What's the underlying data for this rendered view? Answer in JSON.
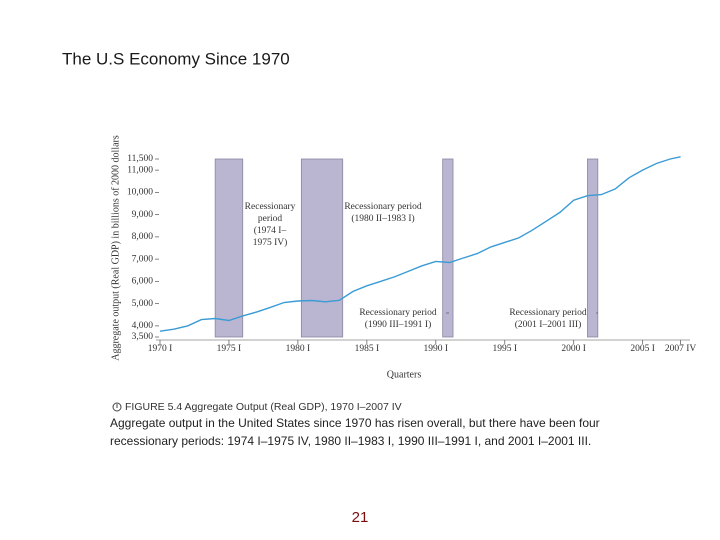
{
  "slide_title": "The U.S Economy Since 1970",
  "chart_data": {
    "type": "line",
    "y_label": "Aggregate output (Real GDP) in billions of 2000 dollars",
    "x_label": "Quarters",
    "x": [
      1970,
      1971,
      1972,
      1973,
      1974,
      1975,
      1976,
      1977,
      1978,
      1979,
      1980,
      1981,
      1982,
      1983,
      1984,
      1985,
      1986,
      1987,
      1988,
      1989,
      1990,
      1991,
      1992,
      1993,
      1994,
      1995,
      1996,
      1997,
      1998,
      1999,
      2000,
      2001,
      2002,
      2003,
      2004,
      2005,
      2006,
      2007,
      2007.75
    ],
    "series": [
      {
        "name": "Real GDP",
        "color": "#3a9bd5",
        "values": [
          3760,
          3850,
          4000,
          4280,
          4330,
          4240,
          4450,
          4620,
          4830,
          5050,
          5120,
          5140,
          5080,
          5150,
          5550,
          5800,
          6000,
          6200,
          6450,
          6700,
          6900,
          6850,
          7050,
          7250,
          7550,
          7750,
          7950,
          8300,
          8700,
          9100,
          9650,
          9850,
          9900,
          10150,
          10650,
          11000,
          11300,
          11500,
          11600
        ]
      }
    ],
    "xlim": [
      1970,
      2008
    ],
    "xticks": [
      {
        "value": 1970,
        "label": "1970 I"
      },
      {
        "value": 1975,
        "label": "1975 I"
      },
      {
        "value": 1980,
        "label": "1980 I"
      },
      {
        "value": 1985,
        "label": "1985 I"
      },
      {
        "value": 1990,
        "label": "1990 I"
      },
      {
        "value": 1995,
        "label": "1995 I"
      },
      {
        "value": 2000,
        "label": "2000 I"
      },
      {
        "value": 2005,
        "label": "2005 I"
      },
      {
        "value": 2007.75,
        "label": "2007 IV"
      }
    ],
    "ylim": [
      3500,
      11500
    ],
    "yticks": [
      {
        "value": 3500,
        "label": "3,500"
      },
      {
        "value": 4000,
        "label": "4,000"
      },
      {
        "value": 5000,
        "label": "5,000"
      },
      {
        "value": 6000,
        "label": "6,000"
      },
      {
        "value": 7000,
        "label": "7,000"
      },
      {
        "value": 8000,
        "label": "8,000"
      },
      {
        "value": 9000,
        "label": "9,000"
      },
      {
        "value": 10000,
        "label": "10,000"
      },
      {
        "value": 11000,
        "label": "11,000"
      },
      {
        "value": 11500,
        "label": "11,500"
      }
    ],
    "band_color": "#bab6d2",
    "recessions": [
      {
        "start": 1974,
        "end": 1976
      },
      {
        "start": 1980.25,
        "end": 1983.25
      },
      {
        "start": 1990.5,
        "end": 1991.25
      },
      {
        "start": 2001,
        "end": 2001.75
      }
    ],
    "annotations": [
      {
        "lines": [
          "Recessionary",
          "period",
          "(1974 I–",
          "1975 IV)"
        ]
      },
      {
        "lines": [
          "Recessionary period",
          "(1980 II–1983 I)"
        ]
      },
      {
        "lines": [
          "Recessionary period",
          "(1990 III–1991 I)"
        ]
      },
      {
        "lines": [
          "Recessionary period",
          "(2001 I–2001 III)"
        ]
      }
    ]
  },
  "caption": "FIGURE 5.4  Aggregate Output (Real GDP), 1970 I–2007 IV",
  "description": [
    "Aggregate output in the United States since 1970 has risen overall, but there have been four",
    "recessionary periods: 1974 I–1975 IV, 1980 II–1983 I, 1990 III–1991 I, and 2001 I–2001 III."
  ],
  "page_number": "21"
}
